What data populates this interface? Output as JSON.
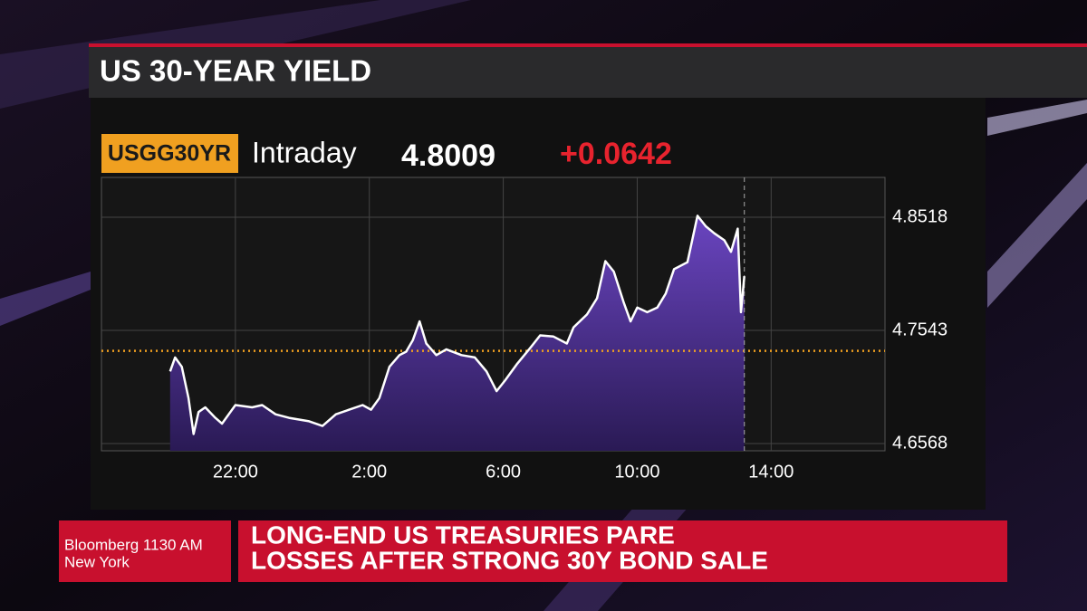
{
  "chart_data": {
    "type": "area",
    "title": "US 30-YEAR YIELD",
    "ticker": "USGG30YR",
    "period_label": "Intraday",
    "last_value": 4.8009,
    "change": "+0.0642",
    "color": "#ffffff",
    "fill_color": "#5b3aa8",
    "reference_value": 4.7367,
    "reference_color": "#f0a020",
    "current_x": 37.2,
    "xlim": [
      18,
      41.4
    ],
    "xticks": [
      {
        "value": 22,
        "label": "22:00"
      },
      {
        "value": 26,
        "label": "2:00"
      },
      {
        "value": 30,
        "label": "6:00"
      },
      {
        "value": 34,
        "label": "10:00"
      },
      {
        "value": 38,
        "label": "14:00"
      }
    ],
    "ylim": [
      4.6506,
      4.8861
    ],
    "yticks": [
      4.6568,
      4.7543,
      4.8518
    ],
    "grid": true,
    "x": [
      20.05,
      20.2,
      20.4,
      20.6,
      20.75,
      20.9,
      21.1,
      21.4,
      21.6,
      22.0,
      22.5,
      22.8,
      23.2,
      23.6,
      24.2,
      24.6,
      25.0,
      25.4,
      25.8,
      26.05,
      26.3,
      26.6,
      26.9,
      27.1,
      27.3,
      27.5,
      27.7,
      28.0,
      28.3,
      28.75,
      29.15,
      29.5,
      29.8,
      30.05,
      30.4,
      30.8,
      31.1,
      31.5,
      31.9,
      32.1,
      32.5,
      32.8,
      33.05,
      33.3,
      33.6,
      33.8,
      34.0,
      34.3,
      34.6,
      34.85,
      35.1,
      35.5,
      35.8,
      36.05,
      36.3,
      36.6,
      36.8,
      37.0,
      37.1,
      37.2
    ],
    "values": [
      4.719,
      4.731,
      4.723,
      4.696,
      4.665,
      4.684,
      4.688,
      4.679,
      4.674,
      4.69,
      4.688,
      4.69,
      4.682,
      4.679,
      4.676,
      4.672,
      4.682,
      4.686,
      4.69,
      4.686,
      4.696,
      4.723,
      4.733,
      4.736,
      4.746,
      4.762,
      4.743,
      4.733,
      4.738,
      4.733,
      4.731,
      4.719,
      4.702,
      4.711,
      4.725,
      4.739,
      4.75,
      4.749,
      4.743,
      4.757,
      4.768,
      4.782,
      4.814,
      4.805,
      4.778,
      4.762,
      4.774,
      4.77,
      4.774,
      4.786,
      4.807,
      4.813,
      4.853,
      4.844,
      4.838,
      4.832,
      4.822,
      4.842,
      4.77,
      4.801
    ]
  },
  "banner": {
    "source": "Bloomberg 1130 AM",
    "location": "New York",
    "headline": [
      "LONG-END US TREASURIES PARE",
      "LOSSES AFTER STRONG 30Y BOND SALE"
    ]
  }
}
